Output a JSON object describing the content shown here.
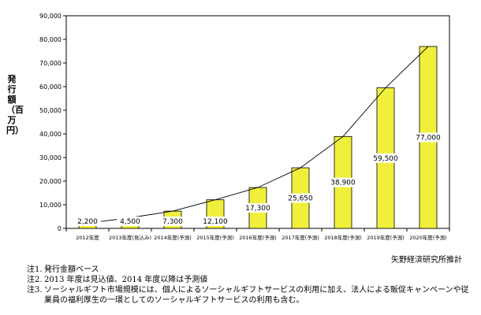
{
  "chart_data": {
    "type": "bar",
    "ylabel": "発行額（百万円）",
    "ylim": [
      0,
      90000
    ],
    "yticks": [
      "0",
      "10,000",
      "20,000",
      "30,000",
      "40,000",
      "50,000",
      "60,000",
      "70,000",
      "80,000",
      "90,000"
    ],
    "categories": [
      "2012年度",
      "2013年度(見込み)",
      "2014年度(予測)",
      "2015年度(予測)",
      "2016年度(予測)",
      "2017年度(予測)",
      "2018年度(予測)",
      "2019年度(予測)",
      "2020年度(予測)"
    ],
    "values": [
      2200,
      4500,
      7300,
      12100,
      17300,
      25650,
      38900,
      59500,
      77000
    ],
    "value_labels": [
      "2,200",
      "4,500",
      "7,300",
      "12,100",
      "17,300",
      "25,650",
      "38,900",
      "59,500",
      "77,000"
    ],
    "bar_color": "#f0f03c",
    "line_connecting_tops": true,
    "grid": false
  },
  "source": "矢野経済研究所推計",
  "notes": [
    {
      "label": "注1.",
      "text": "発行金額ベース"
    },
    {
      "label": "注2.",
      "text": "2013 年度は見込値、2014 年度以降は予測値"
    },
    {
      "label": "注3.",
      "text": "ソーシャルギフト市場規模には、個人によるソーシャルギフトサービスの利用に加え、法人による販促キャンペーンや従業員の福利厚生の一環としてのソーシャルギフトサービスの利用も含む。"
    }
  ]
}
